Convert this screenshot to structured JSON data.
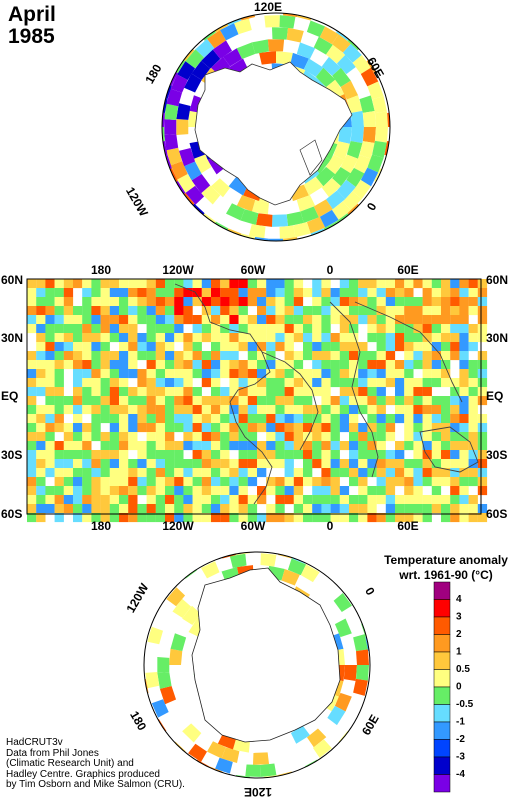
{
  "title": {
    "month": "April",
    "year": "1985"
  },
  "north_polar": {
    "labels": {
      "top": "120E",
      "right": "60E",
      "right_lower": "0",
      "left": "180",
      "left_lower": "120W"
    }
  },
  "main_map": {
    "top_ticks": [
      "180",
      "120W",
      "60W",
      "0",
      "60E"
    ],
    "bottom_ticks": [
      "180",
      "120W",
      "60W",
      "0",
      "60E"
    ],
    "lat_ticks": [
      "60N",
      "30N",
      "EQ",
      "30S",
      "60S"
    ]
  },
  "south_polar": {
    "labels": {
      "left_upper": "120W",
      "right_upper": "0",
      "left_lower": "180",
      "right_lower": "60E",
      "bottom": "120E"
    }
  },
  "legend": {
    "title": "Temperature anomaly",
    "subtitle": "wrt. 1961-90  (°C)",
    "levels": [
      {
        "label": "4",
        "color": "#a0007f"
      },
      {
        "label": "3",
        "color": "#ff0000"
      },
      {
        "label": "2",
        "color": "#ff5a00"
      },
      {
        "label": "1",
        "color": "#ff9a20"
      },
      {
        "label": "0.5",
        "color": "#ffc83c"
      },
      {
        "label": "0",
        "color": "#ffff80"
      },
      {
        "label": "-0.5",
        "color": "#66ee66"
      },
      {
        "label": "-1",
        "color": "#66ddff"
      },
      {
        "label": "-2",
        "color": "#3399ff"
      },
      {
        "label": "-3",
        "color": "#0044ff"
      },
      {
        "label": "-4",
        "color": "#0000cc"
      },
      {
        "label": "",
        "color": "#7a00e6"
      }
    ]
  },
  "credits": [
    "HadCRUT3v",
    "Data from Phil Jones",
    "(Climatic Research Unit) and",
    "Hadley Centre.  Graphics produced",
    "by Tim Osborn and Mike Salmon (CRU)."
  ]
}
